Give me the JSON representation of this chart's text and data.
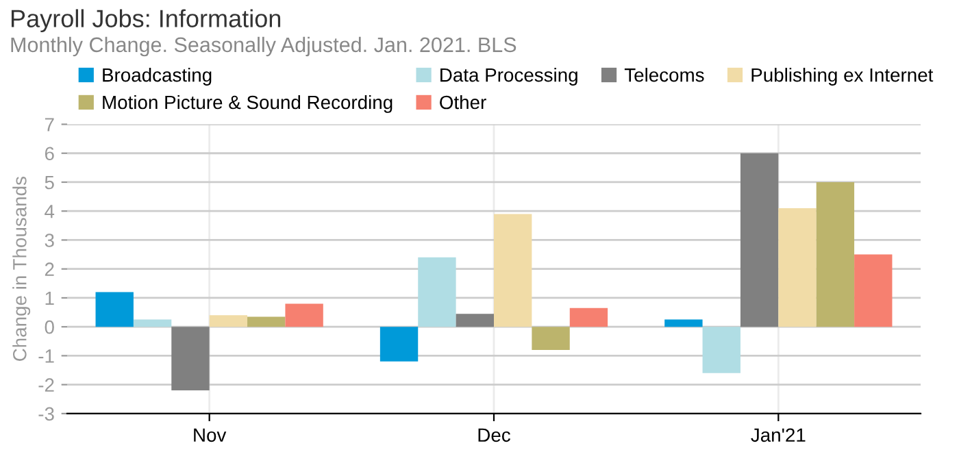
{
  "chart_data": {
    "type": "bar",
    "title": "Payroll Jobs: Information",
    "subtitle": "Monthly Change. Seasonally Adjusted. Jan. 2021. BLS",
    "ylabel": "Change in Thousands",
    "categories": [
      "Nov",
      "Dec",
      "Jan'21"
    ],
    "series": [
      {
        "name": "Broadcasting",
        "color": "#009ad9",
        "values": [
          1.2,
          -1.2,
          0.25
        ]
      },
      {
        "name": "Data Processing",
        "color": "#b0dde4",
        "values": [
          0.25,
          2.4,
          -1.6
        ]
      },
      {
        "name": "Telecoms",
        "color": "#808080",
        "values": [
          -2.2,
          0.45,
          6.0
        ]
      },
      {
        "name": "Publishing ex Internet",
        "color": "#f1dca7",
        "values": [
          0.4,
          3.9,
          4.1
        ]
      },
      {
        "name": "Motion Picture & Sound Recording",
        "color": "#bcb46c",
        "values": [
          0.35,
          -0.8,
          5.0
        ]
      },
      {
        "name": "Other",
        "color": "#f68070",
        "values": [
          0.8,
          0.65,
          2.5
        ]
      }
    ],
    "ylim": [
      -3,
      7
    ],
    "yticks": [
      -3,
      -2,
      -1,
      0,
      1,
      2,
      3,
      4,
      5,
      6,
      7
    ],
    "grid": true,
    "legend": "top"
  }
}
